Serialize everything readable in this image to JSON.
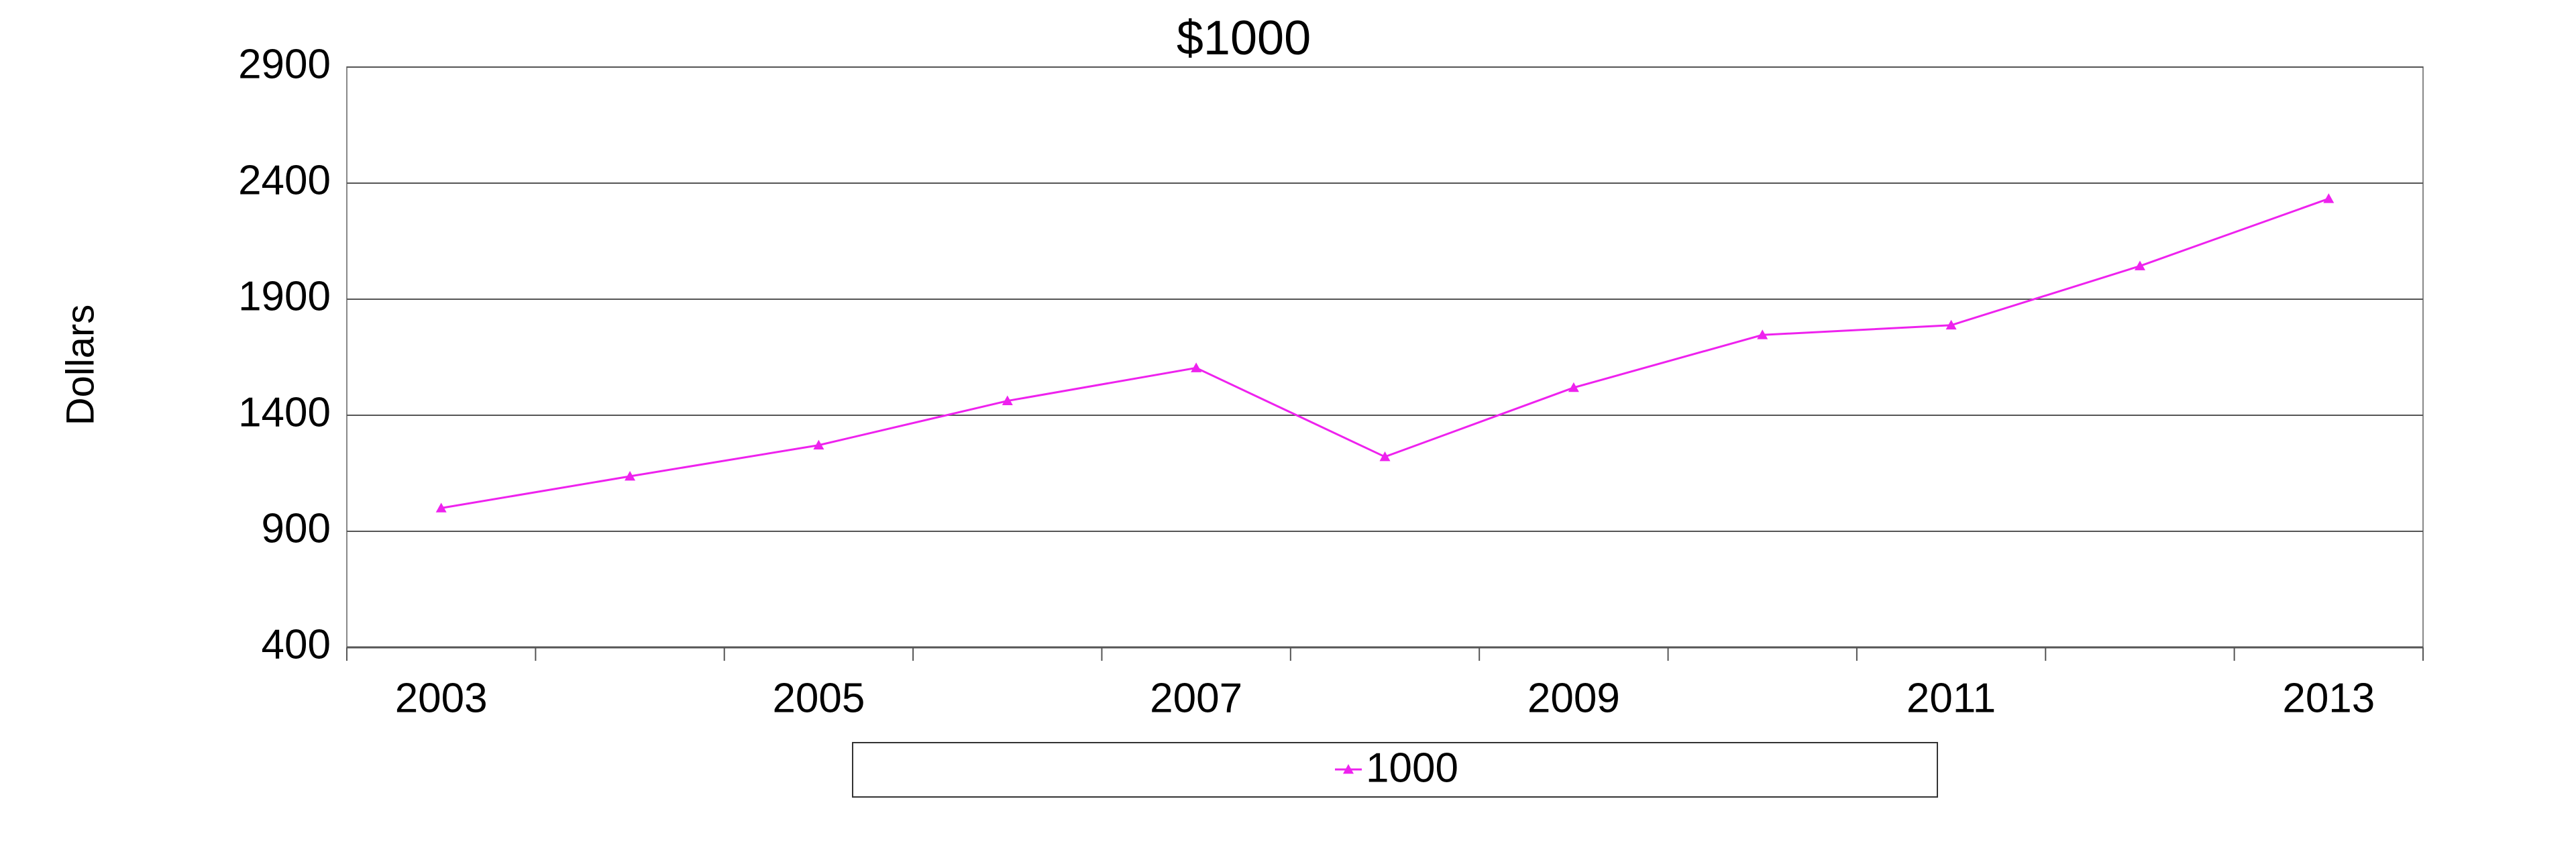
{
  "chart_data": {
    "type": "line",
    "title": "$1000",
    "y_label": "Dollars",
    "categories": [
      "2003",
      null,
      "2005",
      null,
      "2007",
      null,
      "2009",
      null,
      "2011",
      null,
      "2013"
    ],
    "series": [
      {
        "name": "1000",
        "color": "#ee22ee",
        "values": [
          1000,
          1137,
          1271,
          1462,
          1604,
          1221,
          1519,
          1746,
          1788,
          2043,
          2333
        ]
      }
    ],
    "ylim": [
      400,
      2900
    ],
    "yticks": [
      400,
      900,
      1400,
      1900,
      2400,
      2900
    ],
    "grid": true,
    "legend": "bottom"
  }
}
